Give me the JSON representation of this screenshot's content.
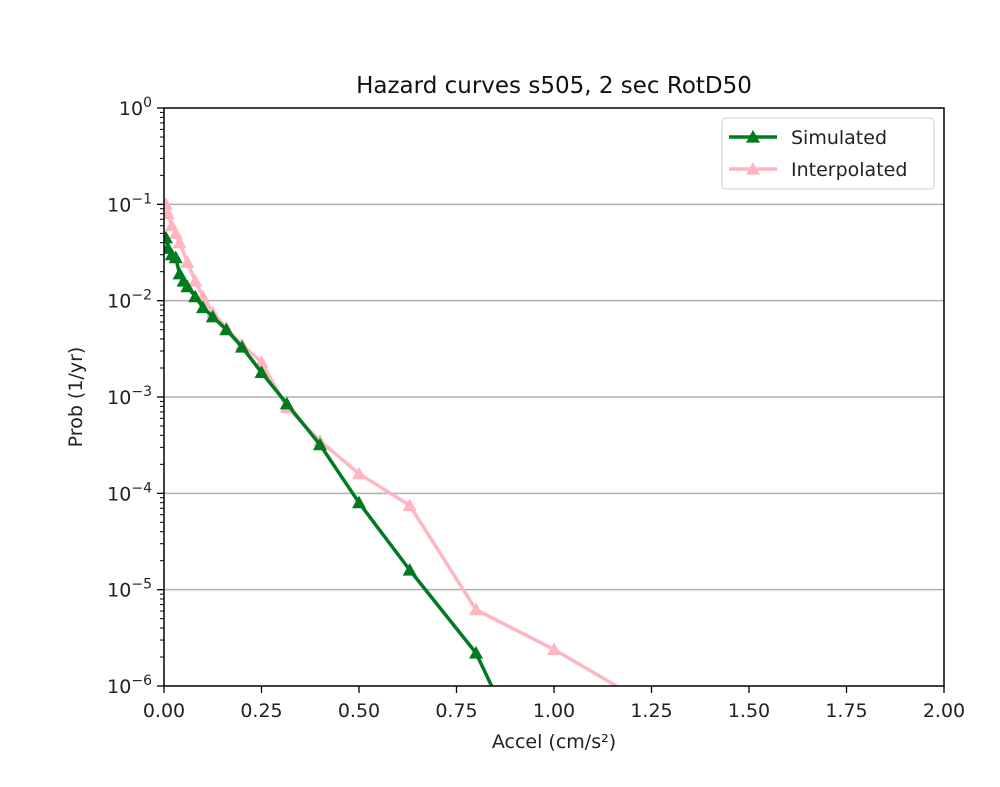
{
  "chart_data": {
    "type": "line",
    "title": "Hazard curves s505, 2 sec RotD50",
    "xlabel": "Accel (cm/s²)",
    "ylabel": "Prob (1/yr)",
    "xlim": [
      0.0,
      2.0
    ],
    "ylim": [
      1e-06,
      1
    ],
    "yscale": "log",
    "grid": "horizontal",
    "legend_position": "top-right",
    "x_ticks": [
      "0.00",
      "0.25",
      "0.50",
      "0.75",
      "1.00",
      "1.25",
      "1.50",
      "1.75",
      "2.00"
    ],
    "x_tick_values": [
      0,
      0.25,
      0.5,
      0.75,
      1.0,
      1.25,
      1.5,
      1.75,
      2.0
    ],
    "y_ticks": [
      {
        "base": "10",
        "exp": "0",
        "value": 1
      },
      {
        "base": "10",
        "exp": "−1",
        "value": 0.1
      },
      {
        "base": "10",
        "exp": "−2",
        "value": 0.01
      },
      {
        "base": "10",
        "exp": "−3",
        "value": 0.001
      },
      {
        "base": "10",
        "exp": "−4",
        "value": 0.0001
      },
      {
        "base": "10",
        "exp": "−5",
        "value": 1e-05
      },
      {
        "base": "10",
        "exp": "−6",
        "value": 1e-06
      }
    ],
    "series": [
      {
        "name": "Simulated",
        "color": "#007a1f",
        "marker": "triangle",
        "x": [
          0.005,
          0.01,
          0.02,
          0.03,
          0.04,
          0.05,
          0.06,
          0.08,
          0.1,
          0.125,
          0.16,
          0.2,
          0.25,
          0.315,
          0.4,
          0.5,
          0.63,
          0.8,
          0.84
        ],
        "y": [
          0.045,
          0.035,
          0.03,
          0.028,
          0.019,
          0.016,
          0.014,
          0.011,
          0.0085,
          0.0068,
          0.005,
          0.0033,
          0.0018,
          0.00085,
          0.00032,
          8e-05,
          1.6e-05,
          2.2e-06,
          1e-06
        ]
      },
      {
        "name": "Interpolated",
        "color": "#ffb6c1",
        "marker": "triangle",
        "x": [
          0.005,
          0.01,
          0.02,
          0.03,
          0.04,
          0.06,
          0.08,
          0.1,
          0.125,
          0.16,
          0.2,
          0.25,
          0.315,
          0.4,
          0.5,
          0.63,
          0.8,
          1.0,
          1.16
        ],
        "y": [
          0.1,
          0.08,
          0.06,
          0.05,
          0.04,
          0.025,
          0.016,
          0.011,
          0.0075,
          0.0052,
          0.0035,
          0.0023,
          0.00078,
          0.00035,
          0.00016,
          7.5e-05,
          6.2e-06,
          2.4e-06,
          1e-06
        ]
      }
    ]
  }
}
